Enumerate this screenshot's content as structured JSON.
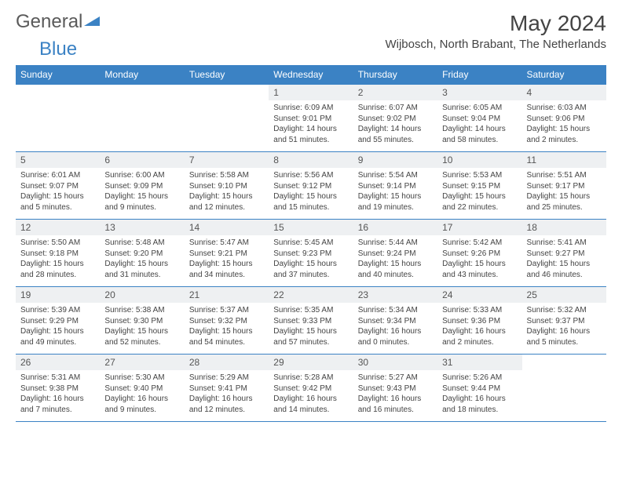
{
  "logo": {
    "general": "General",
    "blue": "Blue"
  },
  "title": "May 2024",
  "location": "Wijbosch, North Brabant, The Netherlands",
  "header_bg": "#3b82c4",
  "daynum_bg": "#eef0f2",
  "border_color": "#3b82c4",
  "days_of_week": [
    "Sunday",
    "Monday",
    "Tuesday",
    "Wednesday",
    "Thursday",
    "Friday",
    "Saturday"
  ],
  "weeks": [
    [
      null,
      null,
      null,
      {
        "n": "1",
        "sr": "6:09 AM",
        "ss": "9:01 PM",
        "dl": "14 hours and 51 minutes."
      },
      {
        "n": "2",
        "sr": "6:07 AM",
        "ss": "9:02 PM",
        "dl": "14 hours and 55 minutes."
      },
      {
        "n": "3",
        "sr": "6:05 AM",
        "ss": "9:04 PM",
        "dl": "14 hours and 58 minutes."
      },
      {
        "n": "4",
        "sr": "6:03 AM",
        "ss": "9:06 PM",
        "dl": "15 hours and 2 minutes."
      }
    ],
    [
      {
        "n": "5",
        "sr": "6:01 AM",
        "ss": "9:07 PM",
        "dl": "15 hours and 5 minutes."
      },
      {
        "n": "6",
        "sr": "6:00 AM",
        "ss": "9:09 PM",
        "dl": "15 hours and 9 minutes."
      },
      {
        "n": "7",
        "sr": "5:58 AM",
        "ss": "9:10 PM",
        "dl": "15 hours and 12 minutes."
      },
      {
        "n": "8",
        "sr": "5:56 AM",
        "ss": "9:12 PM",
        "dl": "15 hours and 15 minutes."
      },
      {
        "n": "9",
        "sr": "5:54 AM",
        "ss": "9:14 PM",
        "dl": "15 hours and 19 minutes."
      },
      {
        "n": "10",
        "sr": "5:53 AM",
        "ss": "9:15 PM",
        "dl": "15 hours and 22 minutes."
      },
      {
        "n": "11",
        "sr": "5:51 AM",
        "ss": "9:17 PM",
        "dl": "15 hours and 25 minutes."
      }
    ],
    [
      {
        "n": "12",
        "sr": "5:50 AM",
        "ss": "9:18 PM",
        "dl": "15 hours and 28 minutes."
      },
      {
        "n": "13",
        "sr": "5:48 AM",
        "ss": "9:20 PM",
        "dl": "15 hours and 31 minutes."
      },
      {
        "n": "14",
        "sr": "5:47 AM",
        "ss": "9:21 PM",
        "dl": "15 hours and 34 minutes."
      },
      {
        "n": "15",
        "sr": "5:45 AM",
        "ss": "9:23 PM",
        "dl": "15 hours and 37 minutes."
      },
      {
        "n": "16",
        "sr": "5:44 AM",
        "ss": "9:24 PM",
        "dl": "15 hours and 40 minutes."
      },
      {
        "n": "17",
        "sr": "5:42 AM",
        "ss": "9:26 PM",
        "dl": "15 hours and 43 minutes."
      },
      {
        "n": "18",
        "sr": "5:41 AM",
        "ss": "9:27 PM",
        "dl": "15 hours and 46 minutes."
      }
    ],
    [
      {
        "n": "19",
        "sr": "5:39 AM",
        "ss": "9:29 PM",
        "dl": "15 hours and 49 minutes."
      },
      {
        "n": "20",
        "sr": "5:38 AM",
        "ss": "9:30 PM",
        "dl": "15 hours and 52 minutes."
      },
      {
        "n": "21",
        "sr": "5:37 AM",
        "ss": "9:32 PM",
        "dl": "15 hours and 54 minutes."
      },
      {
        "n": "22",
        "sr": "5:35 AM",
        "ss": "9:33 PM",
        "dl": "15 hours and 57 minutes."
      },
      {
        "n": "23",
        "sr": "5:34 AM",
        "ss": "9:34 PM",
        "dl": "16 hours and 0 minutes."
      },
      {
        "n": "24",
        "sr": "5:33 AM",
        "ss": "9:36 PM",
        "dl": "16 hours and 2 minutes."
      },
      {
        "n": "25",
        "sr": "5:32 AM",
        "ss": "9:37 PM",
        "dl": "16 hours and 5 minutes."
      }
    ],
    [
      {
        "n": "26",
        "sr": "5:31 AM",
        "ss": "9:38 PM",
        "dl": "16 hours and 7 minutes."
      },
      {
        "n": "27",
        "sr": "5:30 AM",
        "ss": "9:40 PM",
        "dl": "16 hours and 9 minutes."
      },
      {
        "n": "28",
        "sr": "5:29 AM",
        "ss": "9:41 PM",
        "dl": "16 hours and 12 minutes."
      },
      {
        "n": "29",
        "sr": "5:28 AM",
        "ss": "9:42 PM",
        "dl": "16 hours and 14 minutes."
      },
      {
        "n": "30",
        "sr": "5:27 AM",
        "ss": "9:43 PM",
        "dl": "16 hours and 16 minutes."
      },
      {
        "n": "31",
        "sr": "5:26 AM",
        "ss": "9:44 PM",
        "dl": "16 hours and 18 minutes."
      },
      null
    ]
  ],
  "labels": {
    "sunrise": "Sunrise:",
    "sunset": "Sunset:",
    "daylight": "Daylight:"
  }
}
